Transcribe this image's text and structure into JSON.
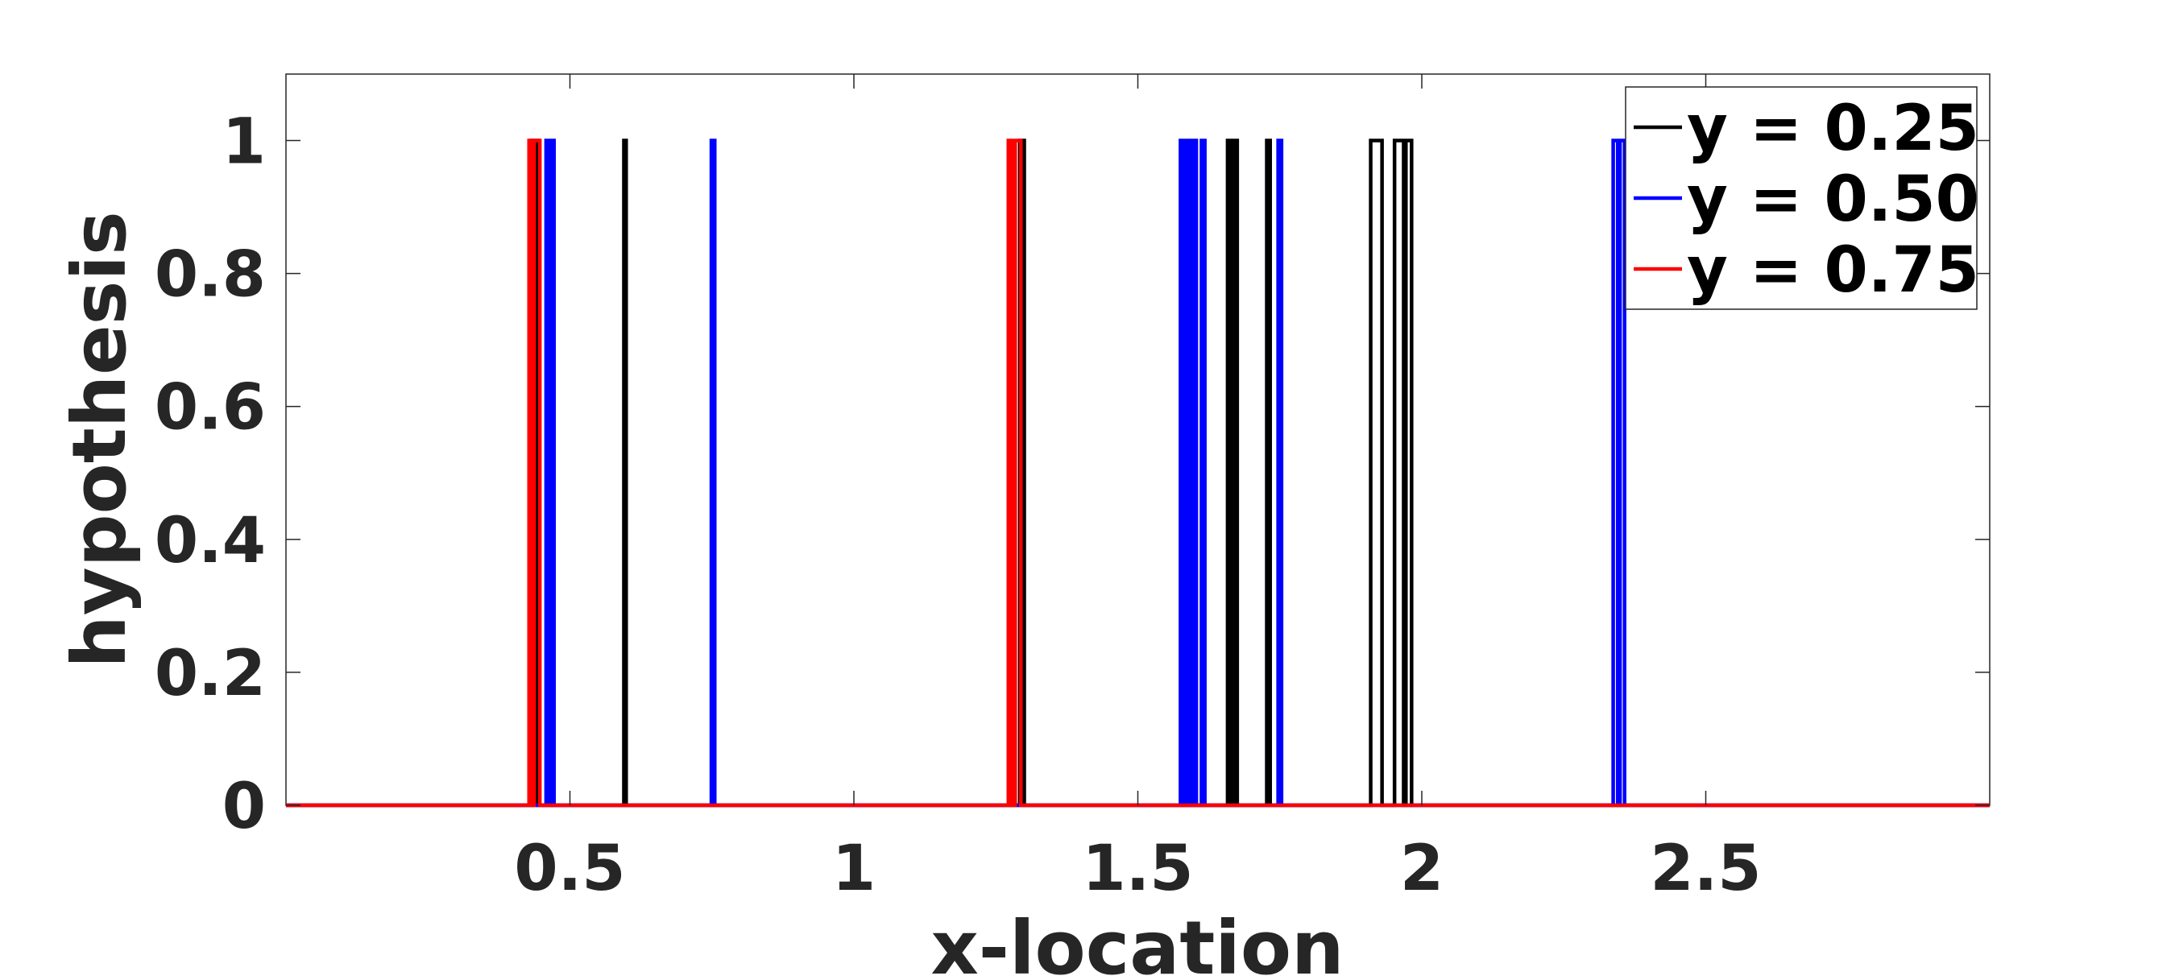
{
  "chart_data": {
    "type": "line",
    "xlabel": "x-location",
    "ylabel": "hypothesis",
    "xlim": [
      0,
      3
    ],
    "ylim": [
      0,
      1.1
    ],
    "xticks": [
      0.5,
      1,
      1.5,
      2,
      2.5
    ],
    "xtick_labels": [
      "0.5",
      "1",
      "1.5",
      "2",
      "2.5"
    ],
    "yticks": [
      0,
      0.2,
      0.4,
      0.6,
      0.8,
      1
    ],
    "ytick_labels": [
      "0",
      "0.2",
      "0.4",
      "0.6",
      "0.8",
      "1"
    ],
    "grid": false,
    "legend_position": "top-right",
    "series": [
      {
        "name": "y = 0.25",
        "color": "#000000",
        "pulses": [
          [
            0.433,
            0.443
          ],
          [
            0.595,
            0.599
          ],
          [
            1.292,
            1.3
          ],
          [
            1.658,
            1.664
          ],
          [
            1.669,
            1.675
          ],
          [
            1.727,
            1.733
          ],
          [
            1.91,
            1.93
          ],
          [
            1.952,
            1.968
          ],
          [
            1.972,
            1.982
          ]
        ]
      },
      {
        "name": "y = 0.50",
        "color": "#0000ff",
        "pulses": [
          [
            0.458,
            0.463
          ],
          [
            0.467,
            0.472
          ],
          [
            0.749,
            0.755
          ],
          [
            1.575,
            1.581
          ],
          [
            1.587,
            1.593
          ],
          [
            1.597,
            1.603
          ],
          [
            1.612,
            1.618
          ],
          [
            1.747,
            1.753
          ],
          [
            2.337,
            2.345
          ],
          [
            2.349,
            2.357
          ]
        ]
      },
      {
        "name": "y = 0.75",
        "color": "#ff0000",
        "pulses": [
          [
            0.428,
            0.434
          ],
          [
            0.437,
            0.447
          ],
          [
            1.272,
            1.278
          ],
          [
            1.284,
            1.294
          ]
        ]
      }
    ]
  }
}
